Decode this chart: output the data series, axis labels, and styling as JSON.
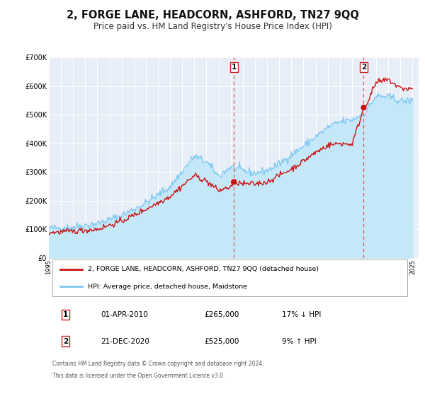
{
  "title": "2, FORGE LANE, HEADCORN, ASHFORD, TN27 9QQ",
  "subtitle": "Price paid vs. HM Land Registry's House Price Index (HPI)",
  "title_fontsize": 10.5,
  "subtitle_fontsize": 8.5,
  "ylim": [
    0,
    700000
  ],
  "yticks": [
    0,
    100000,
    200000,
    300000,
    400000,
    500000,
    600000,
    700000
  ],
  "ytick_labels": [
    "£0",
    "£100K",
    "£200K",
    "£300K",
    "£400K",
    "£500K",
    "£600K",
    "£700K"
  ],
  "xlim_start": 1995.0,
  "xlim_end": 2025.5,
  "xticks": [
    1995,
    1996,
    1997,
    1998,
    1999,
    2000,
    2001,
    2002,
    2003,
    2004,
    2005,
    2006,
    2007,
    2008,
    2009,
    2010,
    2011,
    2012,
    2013,
    2014,
    2015,
    2016,
    2017,
    2018,
    2019,
    2020,
    2021,
    2022,
    2023,
    2024,
    2025
  ],
  "hpi_color": "#7ec8f0",
  "hpi_fill_color": "#c5e8f8",
  "price_color": "#cc1111",
  "sale1_x": 2010.25,
  "sale1_y": 265000,
  "sale2_x": 2020.97,
  "sale2_y": 525000,
  "vline_color": "#e05555",
  "legend_entry1": "2, FORGE LANE, HEADCORN, ASHFORD, TN27 9QQ (detached house)",
  "legend_entry2": "HPI: Average price, detached house, Maidstone",
  "table_row1_num": "1",
  "table_row1_date": "01-APR-2010",
  "table_row1_price": "£265,000",
  "table_row1_hpi": "17% ↓ HPI",
  "table_row2_num": "2",
  "table_row2_date": "21-DEC-2020",
  "table_row2_price": "£525,000",
  "table_row2_hpi": "9% ↑ HPI",
  "footnote_line1": "Contains HM Land Registry data © Crown copyright and database right 2024.",
  "footnote_line2": "This data is licensed under the Open Government Licence v3.0.",
  "bg_chart": "#e8eef8",
  "bg_fig": "#ffffff",
  "grid_color": "#ffffff",
  "hpi_waypoints_x": [
    1995,
    1997,
    1999,
    2001,
    2003,
    2005,
    2007,
    2008,
    2009,
    2010,
    2011,
    2012,
    2013,
    2014,
    2016,
    2018,
    2019,
    2020,
    2021,
    2022,
    2023,
    2024,
    2025
  ],
  "hpi_waypoints_y": [
    103000,
    108000,
    120000,
    148000,
    192000,
    248000,
    355000,
    335000,
    285000,
    318000,
    305000,
    295000,
    305000,
    328000,
    390000,
    455000,
    475000,
    482000,
    504000,
    565000,
    562000,
    548000,
    548000
  ],
  "price_waypoints_x": [
    1995,
    1997,
    1999,
    2001,
    2003,
    2005,
    2007,
    2008,
    2009,
    2010,
    2010.3,
    2011,
    2012,
    2013,
    2014,
    2015,
    2016,
    2017,
    2018,
    2019,
    2020,
    2020.99,
    2021,
    2022,
    2023,
    2024,
    2025
  ],
  "price_waypoints_y": [
    88000,
    93000,
    100000,
    128000,
    170000,
    215000,
    288000,
    268000,
    235000,
    248000,
    265000,
    258000,
    258000,
    265000,
    288000,
    310000,
    338000,
    368000,
    393000,
    400000,
    396000,
    525000,
    520000,
    612000,
    622000,
    592000,
    590000
  ]
}
